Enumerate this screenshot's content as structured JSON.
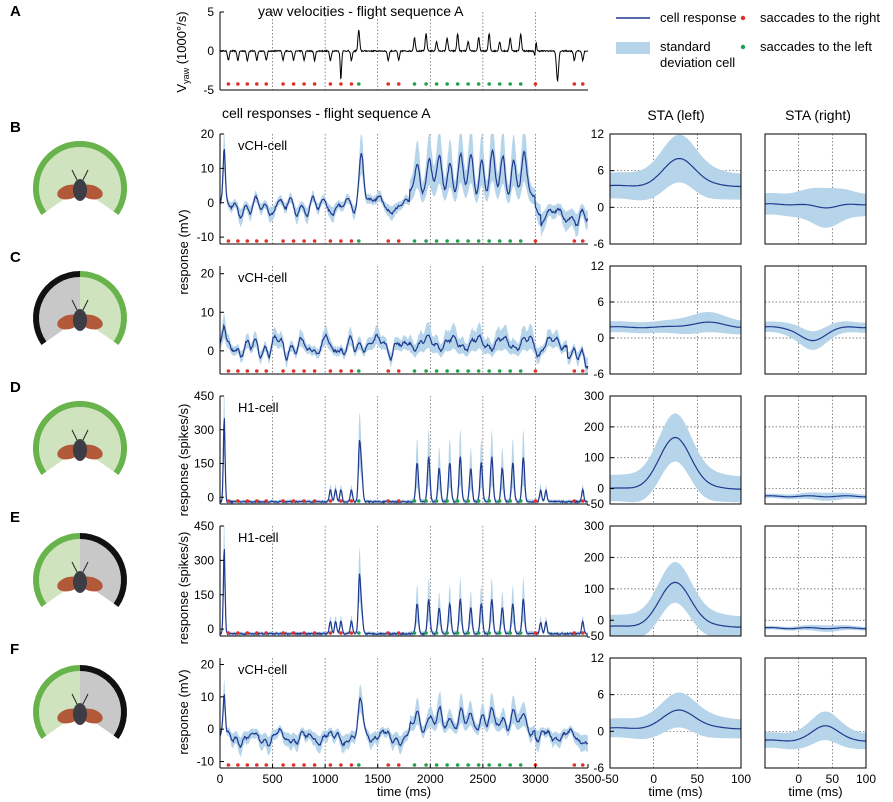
{
  "figure": {
    "panel_letters": [
      "A",
      "B",
      "C",
      "D",
      "E",
      "F"
    ],
    "header_a": "yaw velocities - flight sequence A",
    "header_b": "cell responses - flight sequence A",
    "sta_left_title": "STA (left)",
    "sta_right_title": "STA (right)",
    "legend": {
      "line": "cell response",
      "band": "standard deviation cell",
      "band_line1": "standard",
      "band_line2": "deviation cell",
      "right": "saccades to the right",
      "left": "saccades to the left"
    },
    "colors": {
      "response": "#1f3a8f",
      "sd": "#b6d4ea",
      "right_saccade": "#e0302a",
      "left_saccade": "#1fa24a",
      "yaw": "#000000",
      "fly_green": "#69b34c",
      "fly_black": "#111111",
      "fly_gray": "#c8c8c8"
    },
    "xlabel_main": "time (ms)",
    "xlabel_sta": "time (ms)"
  },
  "chart_data": [
    {
      "id": "A",
      "type": "line",
      "title": "yaw velocities - flight sequence A",
      "ylabel": "V yaw (1000°/s)",
      "ylabel_main": "V",
      "ylabel_sub": "yaw",
      "ylabel_rest": " (1000°/s)",
      "ylim": [
        -5,
        5
      ],
      "yticks": [
        -5,
        0,
        5
      ],
      "xlim": [
        0,
        3500
      ],
      "series": [
        {
          "name": "yaw velocity"
        }
      ]
    },
    {
      "id": "B",
      "type": "line",
      "cell": "vCH-cell",
      "ylabel": "response (mV)",
      "ylim": [
        -12,
        20
      ],
      "yticks": [
        -10,
        0,
        10,
        20
      ],
      "xlim": [
        0,
        3500
      ],
      "sta_ylim": [
        -6,
        12
      ],
      "sta_yticks": [
        -6,
        0,
        6,
        12
      ],
      "sta_left": {
        "baseline": 3.5,
        "peak": 8.0,
        "peak_t": 30,
        "sd": 3.0
      },
      "sta_right": {
        "baseline": 0.5,
        "peak": 0.0,
        "peak_t": 40,
        "sd": 2.5
      }
    },
    {
      "id": "C",
      "type": "line",
      "cell": "vCH-cell",
      "ylabel": "response (mV)",
      "ylim": [
        -6,
        22
      ],
      "yticks": [
        0,
        10,
        20
      ],
      "xlim": [
        0,
        3500
      ],
      "sta_ylim": [
        -6,
        12
      ],
      "sta_yticks": [
        -6,
        0,
        6,
        12
      ],
      "sta_left": {
        "baseline": 1.8,
        "peak": 2.6,
        "peak_t": 60,
        "sd": 1.3
      },
      "sta_right": {
        "baseline": 1.8,
        "peak": -0.5,
        "peak_t": 20,
        "sd": 1.2
      }
    },
    {
      "id": "D",
      "type": "line",
      "cell": "H1-cell",
      "ylabel": "response (spikes/s)",
      "ylim": [
        -30,
        450
      ],
      "yticks": [
        0,
        150,
        300,
        450
      ],
      "xlim": [
        0,
        3500
      ],
      "sta_ylim": [
        -50,
        300
      ],
      "sta_yticks": [
        -50,
        0,
        100,
        200,
        300
      ],
      "sta_left": {
        "baseline": 0,
        "peak": 165,
        "peak_t": 25,
        "sd": 60
      },
      "sta_right": {
        "baseline": -25,
        "peak": -25,
        "peak_t": 40,
        "sd": 10
      }
    },
    {
      "id": "E",
      "type": "line",
      "cell": "H1-cell",
      "ylabel": "response (spikes/s)",
      "ylim": [
        -30,
        450
      ],
      "yticks": [
        0,
        150,
        300,
        450
      ],
      "xlim": [
        0,
        3500
      ],
      "sta_ylim": [
        -50,
        300
      ],
      "sta_yticks": [
        -50,
        0,
        100,
        200,
        300
      ],
      "sta_left": {
        "baseline": -20,
        "peak": 120,
        "peak_t": 25,
        "sd": 50
      },
      "sta_right": {
        "baseline": -25,
        "peak": -25,
        "peak_t": 40,
        "sd": 8
      }
    },
    {
      "id": "F",
      "type": "line",
      "cell": "vCH-cell",
      "ylabel": "response (mV)",
      "ylim": [
        -12,
        22
      ],
      "yticks": [
        -10,
        0,
        10,
        20
      ],
      "xlim": [
        0,
        3500
      ],
      "xticks": [
        0,
        500,
        1000,
        1500,
        2000,
        2500,
        3000,
        3500
      ],
      "sta_ylim": [
        -6,
        12
      ],
      "sta_yticks": [
        -6,
        0,
        6,
        12
      ],
      "sta_xlim": [
        -50,
        100
      ],
      "sta_left_xticks": [
        -50,
        0,
        50,
        100
      ],
      "sta_right_xticks": [
        0,
        50,
        100
      ],
      "sta_left": {
        "baseline": 0.5,
        "peak": 3.5,
        "peak_t": 30,
        "sd": 2.2
      },
      "sta_right": {
        "baseline": -1.5,
        "peak": 1.0,
        "peak_t": 40,
        "sd": 1.8
      }
    }
  ],
  "saccades": {
    "right_times": [
      80,
      170,
      260,
      350,
      440,
      600,
      700,
      800,
      900,
      1050,
      1150,
      1250,
      1600,
      1700,
      3000,
      3370,
      3450
    ],
    "left_times": [
      1320,
      1850,
      1960,
      2060,
      2160,
      2260,
      2360,
      2460,
      2560,
      2660,
      2760,
      2860
    ]
  }
}
